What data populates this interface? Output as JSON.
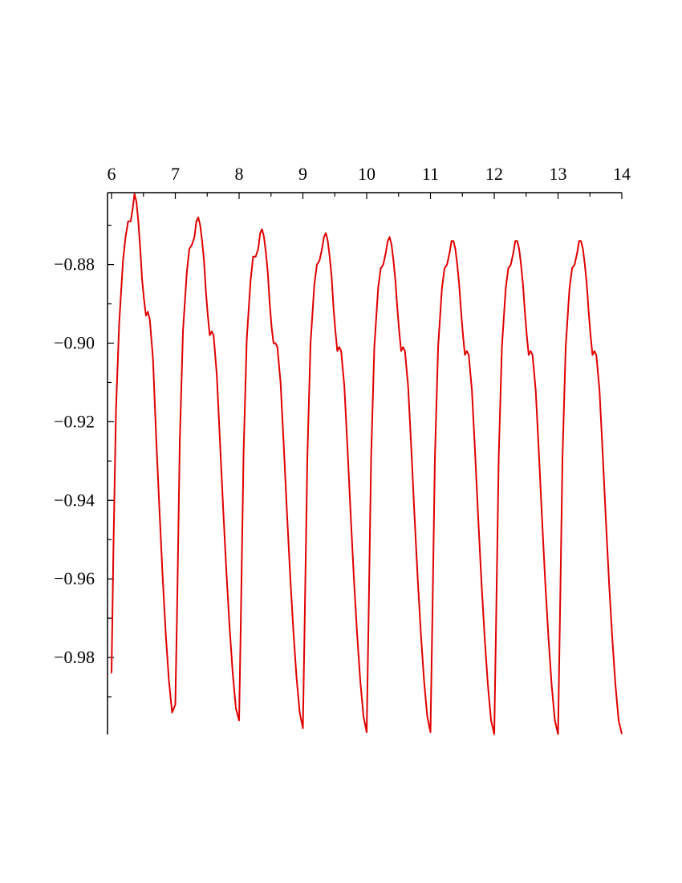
{
  "chart_data": {
    "type": "line",
    "title": "",
    "xlabel": "",
    "ylabel": "",
    "xlim": [
      6,
      14
    ],
    "ylim": [
      -0.9996,
      -0.8617
    ],
    "x_axis_position": "top",
    "grid": false,
    "x_ticks": [
      6,
      7,
      8,
      9,
      10,
      11,
      12,
      13,
      14
    ],
    "x_tick_labels": [
      "6",
      "7",
      "8",
      "9",
      "10",
      "11",
      "12",
      "13",
      "14"
    ],
    "y_ticks": [
      -0.88,
      -0.9,
      -0.92,
      -0.94,
      -0.96,
      -0.98
    ],
    "y_tick_labels": [
      "−0.88",
      "−0.90",
      "−0.92",
      "−0.94",
      "−0.96",
      "−0.98"
    ],
    "color": "#e00000",
    "series": [
      {
        "x": [
          6.0,
          6.03,
          6.07,
          6.12,
          6.18,
          6.22,
          6.26,
          6.3,
          6.33,
          6.36,
          6.39,
          6.42,
          6.45,
          6.48,
          6.51,
          6.54,
          6.57,
          6.6,
          6.65,
          6.7,
          6.75,
          6.8,
          6.85,
          6.9,
          6.95,
          7.0,
          7.03,
          7.07,
          7.12,
          7.18,
          7.22,
          7.26,
          7.3,
          7.33,
          7.36,
          7.39,
          7.42,
          7.45,
          7.48,
          7.51,
          7.54,
          7.57,
          7.6,
          7.65,
          7.7,
          7.75,
          7.8,
          7.85,
          7.9,
          7.95,
          8.0,
          8.03,
          8.07,
          8.12,
          8.18,
          8.22,
          8.26,
          8.3,
          8.33,
          8.36,
          8.39,
          8.42,
          8.45,
          8.48,
          8.51,
          8.54,
          8.57,
          8.6,
          8.65,
          8.7,
          8.75,
          8.8,
          8.85,
          8.9,
          8.95,
          9.0,
          9.03,
          9.07,
          9.12,
          9.18,
          9.22,
          9.26,
          9.3,
          9.33,
          9.36,
          9.39,
          9.42,
          9.45,
          9.48,
          9.51,
          9.54,
          9.57,
          9.6,
          9.65,
          9.7,
          9.75,
          9.8,
          9.85,
          9.9,
          9.95,
          10.0,
          10.03,
          10.07,
          10.12,
          10.18,
          10.22,
          10.26,
          10.3,
          10.33,
          10.36,
          10.39,
          10.42,
          10.45,
          10.48,
          10.51,
          10.54,
          10.57,
          10.6,
          10.65,
          10.7,
          10.75,
          10.8,
          10.85,
          10.9,
          10.95,
          11.0,
          11.03,
          11.07,
          11.12,
          11.18,
          11.22,
          11.26,
          11.3,
          11.33,
          11.36,
          11.39,
          11.42,
          11.45,
          11.48,
          11.51,
          11.54,
          11.57,
          11.6,
          11.65,
          11.7,
          11.75,
          11.8,
          11.85,
          11.9,
          11.95,
          12.0,
          12.03,
          12.07,
          12.12,
          12.18,
          12.22,
          12.26,
          12.3,
          12.33,
          12.36,
          12.39,
          12.42,
          12.45,
          12.48,
          12.51,
          12.54,
          12.57,
          12.6,
          12.65,
          12.7,
          12.75,
          12.8,
          12.85,
          12.9,
          12.95,
          13.0,
          13.03,
          13.07,
          13.12,
          13.18,
          13.22,
          13.26,
          13.3,
          13.33,
          13.36,
          13.39,
          13.42,
          13.45,
          13.48,
          13.51,
          13.54,
          13.57,
          13.6,
          13.65,
          13.7,
          13.75,
          13.8,
          13.85,
          13.9,
          13.95,
          14.0
        ],
        "y": [
          -0.984,
          -0.952,
          -0.917,
          -0.895,
          -0.879,
          -0.873,
          -0.869,
          -0.869,
          -0.866,
          -0.862,
          -0.864,
          -0.869,
          -0.876,
          -0.884,
          -0.889,
          -0.893,
          -0.892,
          -0.894,
          -0.904,
          -0.924,
          -0.942,
          -0.959,
          -0.974,
          -0.986,
          -0.994,
          -0.992,
          -0.966,
          -0.925,
          -0.897,
          -0.882,
          -0.876,
          -0.875,
          -0.873,
          -0.869,
          -0.868,
          -0.87,
          -0.874,
          -0.879,
          -0.887,
          -0.893,
          -0.898,
          -0.897,
          -0.898,
          -0.908,
          -0.925,
          -0.942,
          -0.958,
          -0.972,
          -0.984,
          -0.993,
          -0.996,
          -0.968,
          -0.928,
          -0.899,
          -0.884,
          -0.878,
          -0.878,
          -0.876,
          -0.872,
          -0.871,
          -0.873,
          -0.877,
          -0.882,
          -0.89,
          -0.896,
          -0.9,
          -0.9,
          -0.901,
          -0.91,
          -0.926,
          -0.943,
          -0.959,
          -0.973,
          -0.985,
          -0.994,
          -0.998,
          -0.969,
          -0.929,
          -0.9,
          -0.885,
          -0.88,
          -0.879,
          -0.876,
          -0.873,
          -0.872,
          -0.874,
          -0.878,
          -0.883,
          -0.891,
          -0.897,
          -0.902,
          -0.901,
          -0.902,
          -0.911,
          -0.927,
          -0.944,
          -0.96,
          -0.974,
          -0.986,
          -0.995,
          -0.999,
          -0.97,
          -0.929,
          -0.901,
          -0.886,
          -0.881,
          -0.88,
          -0.877,
          -0.874,
          -0.873,
          -0.875,
          -0.879,
          -0.884,
          -0.891,
          -0.897,
          -0.902,
          -0.901,
          -0.902,
          -0.911,
          -0.927,
          -0.944,
          -0.96,
          -0.974,
          -0.986,
          -0.995,
          -0.999,
          -0.97,
          -0.929,
          -0.901,
          -0.886,
          -0.881,
          -0.88,
          -0.877,
          -0.874,
          -0.874,
          -0.876,
          -0.88,
          -0.885,
          -0.892,
          -0.898,
          -0.903,
          -0.902,
          -0.903,
          -0.912,
          -0.928,
          -0.945,
          -0.961,
          -0.975,
          -0.987,
          -0.996,
          -0.9995,
          -0.97,
          -0.929,
          -0.901,
          -0.886,
          -0.881,
          -0.88,
          -0.877,
          -0.874,
          -0.874,
          -0.876,
          -0.88,
          -0.885,
          -0.892,
          -0.898,
          -0.903,
          -0.902,
          -0.903,
          -0.912,
          -0.928,
          -0.945,
          -0.961,
          -0.975,
          -0.987,
          -0.996,
          -0.9995,
          -0.97,
          -0.929,
          -0.901,
          -0.886,
          -0.881,
          -0.88,
          -0.877,
          -0.874,
          -0.874,
          -0.876,
          -0.88,
          -0.885,
          -0.892,
          -0.898,
          -0.903,
          -0.902,
          -0.903,
          -0.912,
          -0.928,
          -0.945,
          -0.961,
          -0.975,
          -0.987,
          -0.996,
          -0.9995
        ]
      }
    ]
  }
}
